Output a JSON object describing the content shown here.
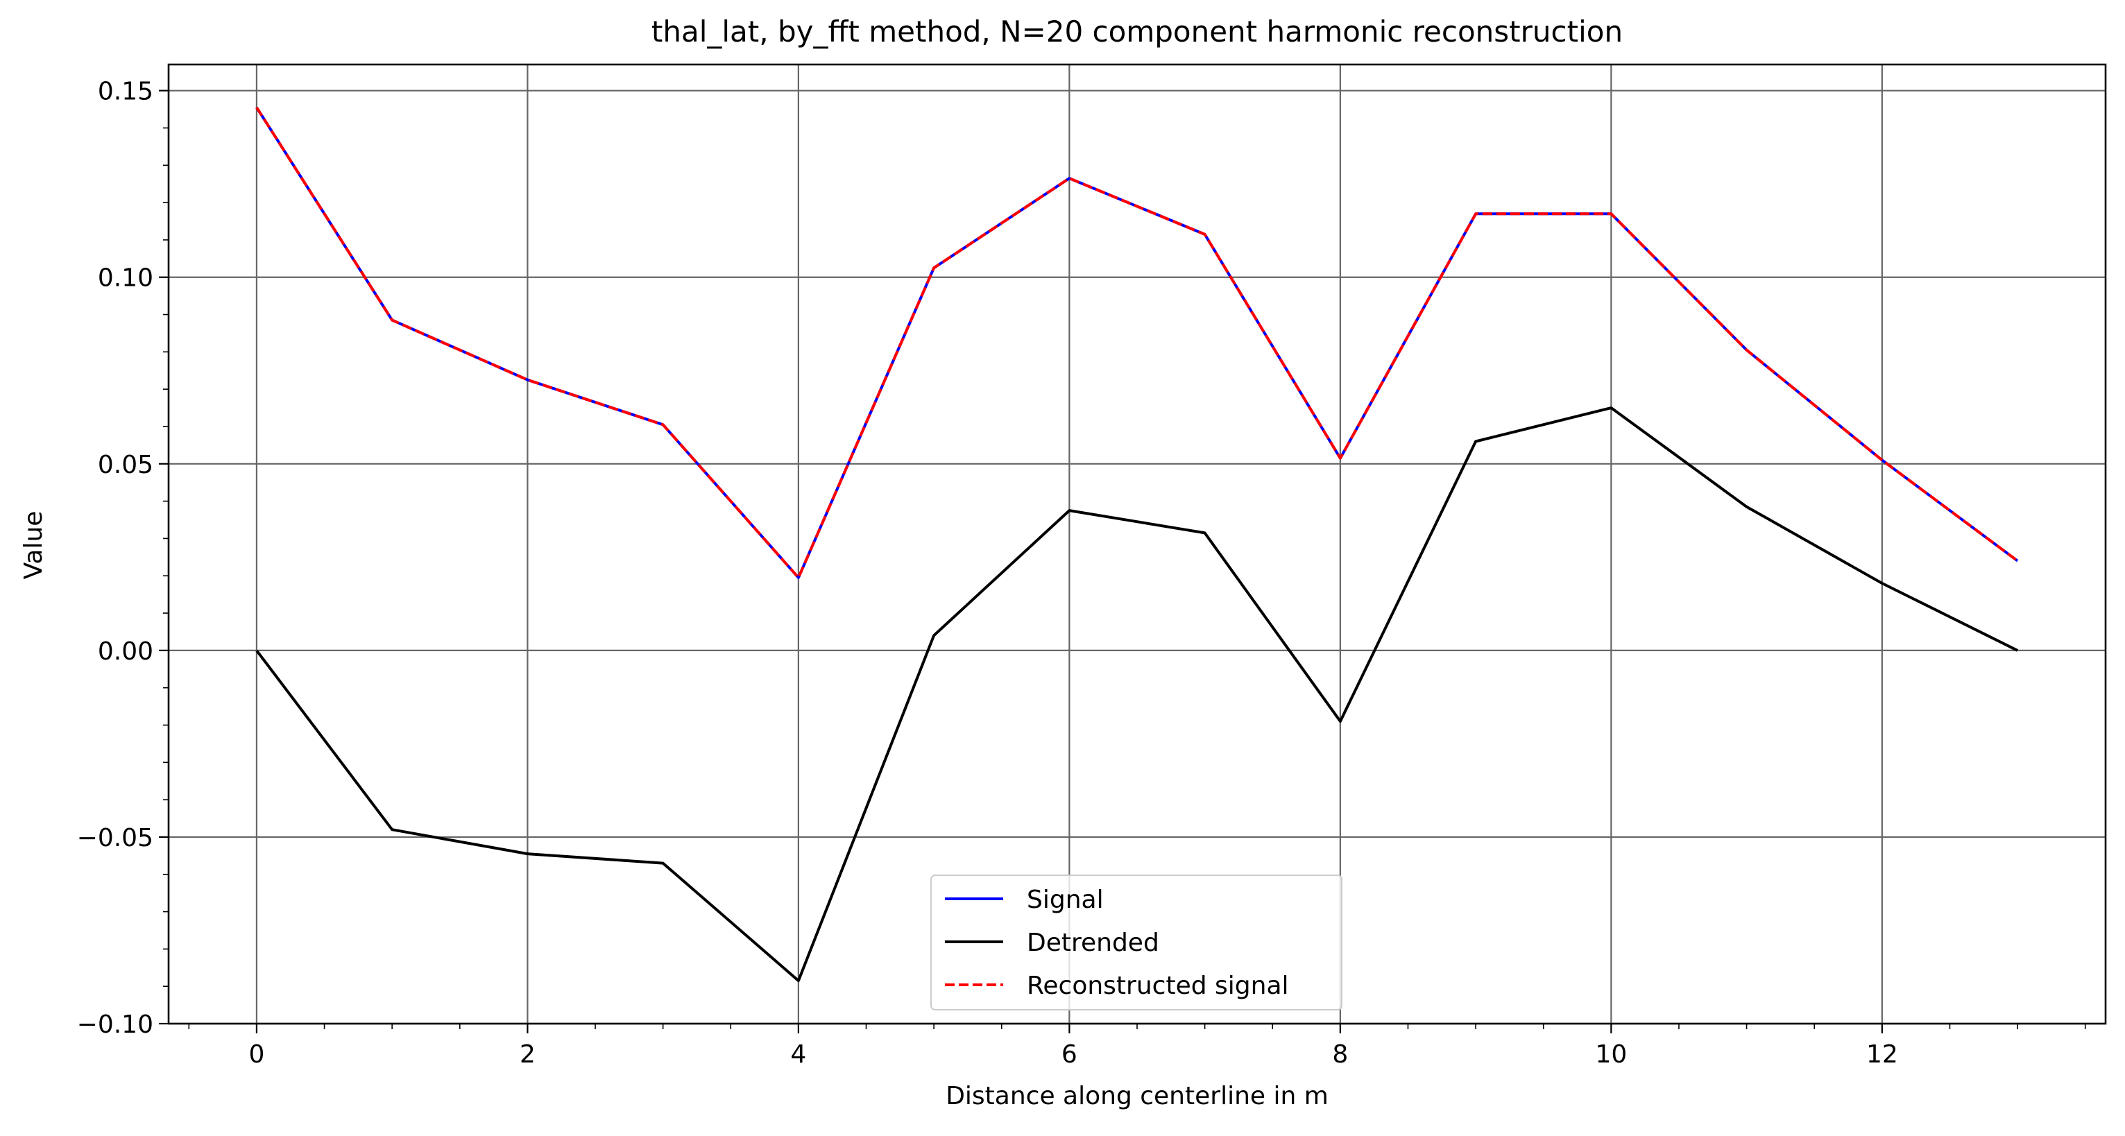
{
  "chart_data": {
    "type": "line",
    "title": "thal_lat, by_fft method, N=20 component harmonic reconstruction",
    "xlabel": "Distance along centerline in m",
    "ylabel": "Value",
    "xlim": [
      -0.65,
      13.65
    ],
    "ylim": [
      -0.1,
      0.157
    ],
    "x_ticks": [
      0,
      2,
      4,
      6,
      8,
      10,
      12
    ],
    "x_tick_labels": [
      "0",
      "2",
      "4",
      "6",
      "8",
      "10",
      "12"
    ],
    "y_ticks": [
      -0.1,
      -0.05,
      0.0,
      0.05,
      0.1,
      0.15
    ],
    "y_tick_labels": [
      "−0.10",
      "−0.05",
      "0.00",
      "0.05",
      "0.10",
      "0.15"
    ],
    "x_minor_step": 0.5,
    "y_minor_step": 0.01,
    "grid": true,
    "legend_position": "bottom-center",
    "x": [
      0,
      1,
      2,
      3,
      4,
      5,
      6,
      7,
      8,
      9,
      10,
      11,
      12,
      13
    ],
    "series": [
      {
        "name": "Signal",
        "color": "#0000ff",
        "style": "solid",
        "values": [
          0.1455,
          0.0885,
          0.0725,
          0.0605,
          0.0195,
          0.1025,
          0.1265,
          0.1115,
          0.0515,
          0.117,
          0.117,
          0.0805,
          0.051,
          0.024
        ]
      },
      {
        "name": "Detrended",
        "color": "#000000",
        "style": "solid",
        "values": [
          0.0,
          -0.048,
          -0.0545,
          -0.057,
          -0.0885,
          0.004,
          0.0375,
          0.0315,
          -0.019,
          0.056,
          0.065,
          0.0385,
          0.018,
          0.0
        ]
      },
      {
        "name": "Reconstructed signal",
        "color": "#ff0000",
        "style": "dashed",
        "values": [
          0.1455,
          0.0885,
          0.0725,
          0.0605,
          0.0195,
          0.1025,
          0.1265,
          0.1115,
          0.0515,
          0.117,
          0.117,
          0.0805,
          0.051,
          0.024
        ]
      }
    ]
  }
}
